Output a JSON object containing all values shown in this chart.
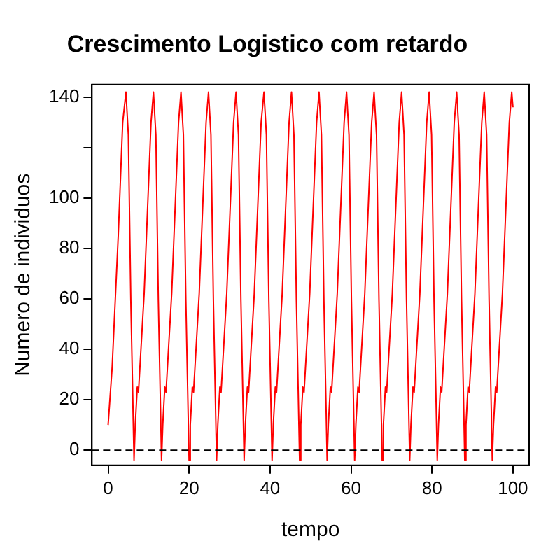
{
  "chart_data": {
    "type": "line",
    "title": "Crescimento Logistico com retardo",
    "xlabel": "tempo",
    "ylabel": "Numero de individuos",
    "x": [
      0,
      1.0,
      2.5,
      3.6,
      4.4,
      5.0,
      5.6,
      6.4,
      6.7,
      7.2,
      7.5,
      8.9,
      10.6,
      11.2,
      11.8,
      12.4,
      13.2,
      13.5,
      14.0,
      14.3,
      15.7,
      17.4,
      18.0,
      18.6,
      19.2,
      20.0,
      20.3,
      20.8,
      21.1,
      22.5,
      24.2,
      24.8,
      25.4,
      26.0,
      26.8,
      27.1,
      27.6,
      27.9,
      29.3,
      31.0,
      31.6,
      32.2,
      32.8,
      33.6,
      33.9,
      34.4,
      34.7,
      36.1,
      37.8,
      38.5,
      39.1,
      39.7,
      40.5,
      40.8,
      41.3,
      41.6,
      43.0,
      44.7,
      45.3,
      45.9,
      46.5,
      47.3,
      47.6,
      48.1,
      48.4,
      49.8,
      51.5,
      52.1,
      52.7,
      53.3,
      54.1,
      54.4,
      54.9,
      55.2,
      56.6,
      58.3,
      58.9,
      59.5,
      60.1,
      60.9,
      61.2,
      61.7,
      62.0,
      63.4,
      65.1,
      65.7,
      66.3,
      66.9,
      67.7,
      68.0,
      68.5,
      68.8,
      70.2,
      71.9,
      72.5,
      73.1,
      73.7,
      74.5,
      74.8,
      75.3,
      75.6,
      77.0,
      78.7,
      79.3,
      79.9,
      80.5,
      81.3,
      81.6,
      82.1,
      82.4,
      83.8,
      85.5,
      86.1,
      86.7,
      87.3,
      88.1,
      88.4,
      88.9,
      89.2,
      90.6,
      92.3,
      92.9,
      93.5,
      94.1,
      94.9,
      95.2,
      95.7,
      96.0,
      97.4,
      99.1,
      99.7,
      100
    ],
    "series": [
      {
        "color": "#ff0000",
        "values": [
          10,
          33,
          85,
          130,
          142,
          125,
          60,
          -4,
          10,
          25,
          23,
          62,
          130,
          142,
          125,
          60,
          -4,
          10,
          25,
          23,
          62,
          130,
          142,
          125,
          60,
          -4,
          10,
          25,
          23,
          62,
          130,
          142,
          125,
          60,
          -4,
          10,
          25,
          23,
          62,
          130,
          142,
          125,
          60,
          -4,
          10,
          25,
          23,
          62,
          130,
          142,
          125,
          60,
          -4,
          10,
          25,
          23,
          62,
          130,
          142,
          125,
          60,
          -4,
          10,
          25,
          23,
          62,
          130,
          142,
          125,
          60,
          -4,
          10,
          25,
          23,
          62,
          130,
          142,
          125,
          60,
          -4,
          10,
          25,
          23,
          62,
          130,
          142,
          125,
          60,
          -4,
          10,
          25,
          23,
          62,
          130,
          142,
          125,
          60,
          -4,
          10,
          25,
          23,
          62,
          130,
          142,
          125,
          60,
          -4,
          10,
          25,
          23,
          62,
          130,
          142,
          125,
          60,
          -4,
          10,
          25,
          23,
          62,
          130,
          142,
          125,
          60,
          -4,
          10,
          25,
          23,
          62,
          130,
          142,
          136
        ]
      }
    ],
    "xlim": [
      -4,
      104
    ],
    "xticks": [
      0,
      20,
      40,
      60,
      80,
      100
    ],
    "ylim": [
      -6,
      145
    ],
    "yticks": [
      0,
      20,
      40,
      60,
      80,
      100,
      {
        "value": 120,
        "label": null
      },
      140
    ],
    "ref_lines": [
      {
        "axis": "y",
        "value": 0,
        "color": "#000000",
        "line_style": "dashed"
      }
    ],
    "grid": false,
    "legend": false,
    "marker": "none",
    "line_style": "solid"
  }
}
